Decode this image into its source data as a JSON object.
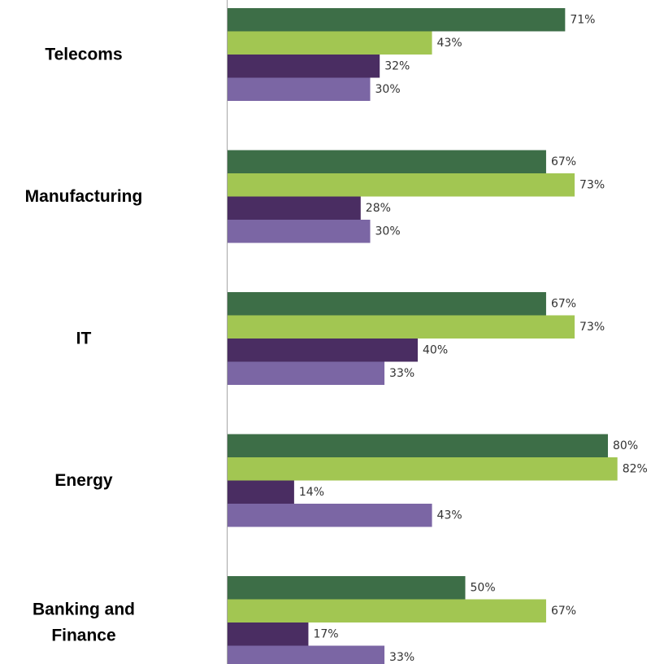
{
  "chart_data": {
    "type": "bar",
    "orientation": "horizontal",
    "title": "",
    "xlabel": "",
    "ylabel": "",
    "xlim": [
      0,
      100
    ],
    "grid": false,
    "legend": "none",
    "categories": [
      {
        "lines": [
          "Telecoms"
        ]
      },
      {
        "lines": [
          "Manufacturing"
        ]
      },
      {
        "lines": [
          "IT"
        ]
      },
      {
        "lines": [
          "Energy"
        ]
      },
      {
        "lines": [
          "Banking and",
          "Finance"
        ]
      }
    ],
    "series": [
      {
        "color": "#3d6e47",
        "values": [
          71,
          67,
          67,
          80,
          50
        ],
        "labels": [
          "71%",
          "67%",
          "67%",
          "80%",
          "50%"
        ]
      },
      {
        "color": "#a2c652",
        "values": [
          43,
          73,
          73,
          82,
          67
        ],
        "labels": [
          "43%",
          "73%",
          "73%",
          "82%",
          "67%"
        ]
      },
      {
        "color": "#4a2d62",
        "values": [
          32,
          28,
          40,
          14,
          17
        ],
        "labels": [
          "32%",
          "28%",
          "40%",
          "14%",
          "17%"
        ]
      },
      {
        "color": "#7b66a4",
        "values": [
          30,
          30,
          33,
          43,
          33
        ],
        "labels": [
          "30%",
          "30%",
          "33%",
          "43%",
          "33%"
        ]
      }
    ]
  }
}
